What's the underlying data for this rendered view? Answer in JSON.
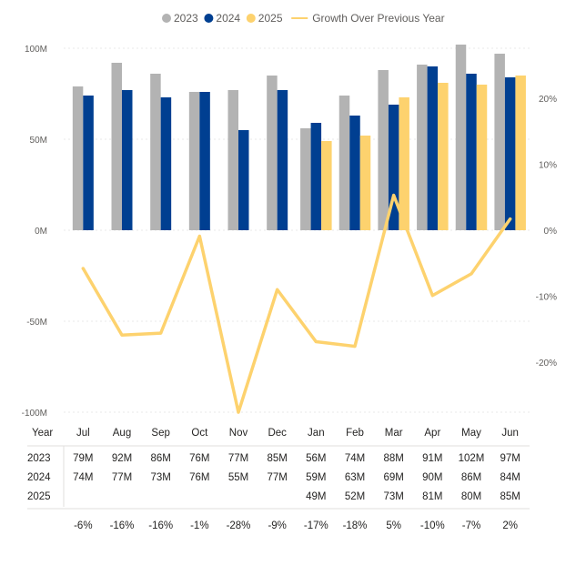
{
  "chart_data": {
    "type": "bar",
    "categories": [
      "Jul",
      "Aug",
      "Sep",
      "Oct",
      "Nov",
      "Dec",
      "Jan",
      "Feb",
      "Mar",
      "Apr",
      "May",
      "Jun"
    ],
    "series": [
      {
        "name": "2023",
        "color": "#b3b3b3",
        "values": [
          79,
          92,
          86,
          76,
          77,
          85,
          56,
          74,
          88,
          91,
          102,
          97
        ]
      },
      {
        "name": "2024",
        "color": "#003f91",
        "values": [
          74,
          77,
          73,
          76,
          55,
          77,
          59,
          63,
          69,
          90,
          86,
          84
        ]
      },
      {
        "name": "2025",
        "color": "#fdd26e",
        "values": [
          null,
          null,
          null,
          null,
          null,
          null,
          49,
          52,
          73,
          81,
          80,
          85
        ]
      }
    ],
    "line_series": {
      "name": "Growth Over Previous Year",
      "color": "#fdd26e",
      "axis": "right",
      "values": [
        -5.8,
        -15.9,
        -15.6,
        -0.9,
        -27.6,
        -9.0,
        -16.9,
        -17.6,
        5.3,
        -9.9,
        -6.6,
        1.7
      ]
    },
    "y_left": {
      "ylim": [
        -100,
        100
      ],
      "ticks": [
        100,
        50,
        0,
        -50,
        -100
      ],
      "tick_labels": [
        "100M",
        "50M",
        "0M",
        "-50M",
        "-100M"
      ]
    },
    "y_right": {
      "ylim": [
        -28,
        28
      ],
      "ticks": [
        20,
        10,
        0,
        -10,
        -20
      ],
      "tick_labels": [
        "20%",
        "10%",
        "0%",
        "-10%",
        "-20%"
      ]
    },
    "gridlines": true,
    "legend_position": "top-center"
  },
  "table": {
    "header_label": "Year",
    "rows": [
      {
        "label": "2023",
        "cells": [
          "79M",
          "92M",
          "86M",
          "76M",
          "77M",
          "85M",
          "56M",
          "74M",
          "88M",
          "91M",
          "102M",
          "97M"
        ]
      },
      {
        "label": "2024",
        "cells": [
          "74M",
          "77M",
          "73M",
          "76M",
          "55M",
          "77M",
          "59M",
          "63M",
          "69M",
          "90M",
          "86M",
          "84M"
        ]
      },
      {
        "label": "2025",
        "cells": [
          "",
          "",
          "",
          "",
          "",
          "",
          "49M",
          "52M",
          "73M",
          "81M",
          "80M",
          "85M"
        ]
      }
    ],
    "growth_row": [
      "-6%",
      "-16%",
      "-16%",
      "-1%",
      "-28%",
      "-9%",
      "-17%",
      "-18%",
      "5%",
      "-10%",
      "-7%",
      "2%"
    ]
  }
}
